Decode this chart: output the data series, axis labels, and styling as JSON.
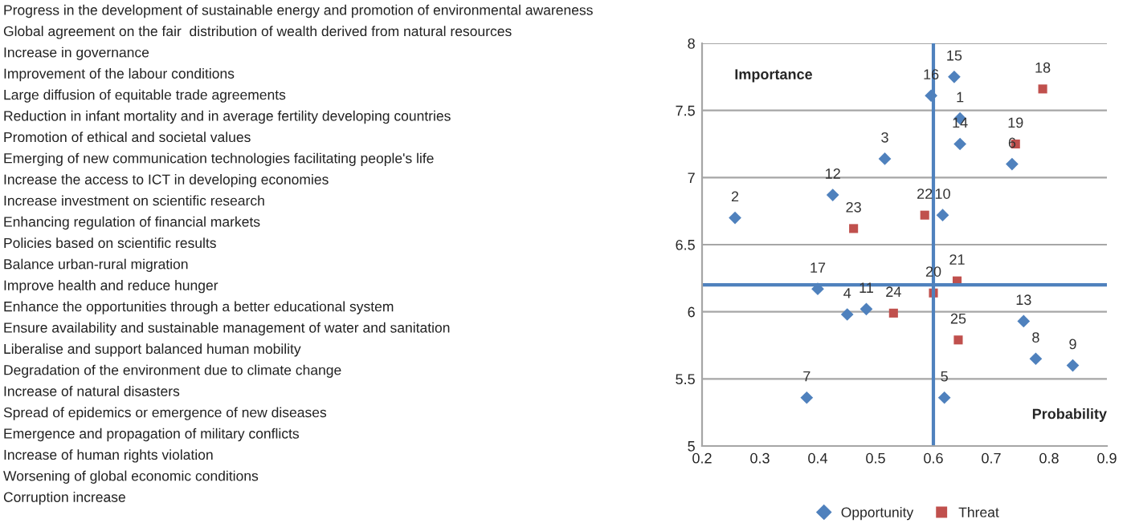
{
  "chart_data": {
    "type": "scatter",
    "xlabel": "Probability",
    "ylabel": "Importance",
    "xlim": [
      0.2,
      0.9
    ],
    "xticks": [
      0.2,
      0.3,
      0.4,
      0.5,
      0.6,
      0.7,
      0.8,
      0.9
    ],
    "ylim": [
      5,
      8
    ],
    "yticks": [
      5,
      5.5,
      6,
      6.5,
      7,
      7.5,
      8
    ],
    "grid": "y",
    "legend": "bottom",
    "series": [
      {
        "name": "Opportunity",
        "color": "#4f81bd",
        "marker": "diamond",
        "x": [
          0.646,
          0.257,
          0.516,
          0.451,
          0.619,
          0.736,
          0.381,
          0.777,
          0.841,
          0.616,
          0.484,
          0.426,
          0.756,
          0.646,
          0.636,
          0.596,
          0.4
        ],
        "values": [
          7.44,
          6.7,
          7.14,
          5.98,
          5.36,
          7.1,
          5.36,
          5.65,
          5.6,
          6.72,
          6.02,
          6.87,
          5.93,
          7.25,
          7.75,
          7.61,
          6.17
        ]
      },
      {
        "name": "Threat",
        "color": "#c0504d",
        "marker": "square",
        "x": [
          0.789,
          0.742,
          0.6,
          0.641,
          0.585,
          0.462,
          0.531,
          0.643
        ],
        "values": [
          7.66,
          7.25,
          6.14,
          6.23,
          6.72,
          6.62,
          5.99,
          5.79
        ]
      }
    ],
    "ref_lines": [
      {
        "axis": "x",
        "value": 0.6,
        "color": "#4f81bd"
      },
      {
        "axis": "y",
        "value": 6.2,
        "color": "#4f81bd"
      }
    ],
    "annotations": [
      {
        "text": "1",
        "x": 0.646,
        "y": 7.44
      },
      {
        "text": "2",
        "x": 0.257,
        "y": 6.7
      },
      {
        "text": "3",
        "x": 0.516,
        "y": 7.14
      },
      {
        "text": "4",
        "x": 0.451,
        "y": 5.98
      },
      {
        "text": "5",
        "x": 0.619,
        "y": 5.36
      },
      {
        "text": "6",
        "x": 0.736,
        "y": 7.1
      },
      {
        "text": "7",
        "x": 0.381,
        "y": 5.36
      },
      {
        "text": "8",
        "x": 0.777,
        "y": 5.65
      },
      {
        "text": "9",
        "x": 0.841,
        "y": 5.6
      },
      {
        "text": "10",
        "x": 0.616,
        "y": 6.72
      },
      {
        "text": "11",
        "x": 0.484,
        "y": 6.02
      },
      {
        "text": "12",
        "x": 0.426,
        "y": 6.87
      },
      {
        "text": "13",
        "x": 0.756,
        "y": 5.93
      },
      {
        "text": "14",
        "x": 0.646,
        "y": 7.25
      },
      {
        "text": "15",
        "x": 0.636,
        "y": 7.75
      },
      {
        "text": "16",
        "x": 0.596,
        "y": 7.61
      },
      {
        "text": "17",
        "x": 0.4,
        "y": 6.17
      },
      {
        "text": "18",
        "x": 0.789,
        "y": 7.66
      },
      {
        "text": "19",
        "x": 0.742,
        "y": 7.25
      },
      {
        "text": "20",
        "x": 0.6,
        "y": 6.14
      },
      {
        "text": "21",
        "x": 0.641,
        "y": 6.23
      },
      {
        "text": "22",
        "x": 0.585,
        "y": 6.72
      },
      {
        "text": "23",
        "x": 0.462,
        "y": 6.62
      },
      {
        "text": "24",
        "x": 0.531,
        "y": 5.99
      },
      {
        "text": "25",
        "x": 0.643,
        "y": 5.79
      },
      "Progress in the development of sustainable energy and promotion of environmental awareness",
      "Global agreement on the fair  distribution of wealth derived from natural resources",
      "Increase in governance",
      "Improvement of the labour conditions",
      "Large diffusion of equitable trade agreements",
      "Reduction in infant mortality and in average fertility developing countries",
      "Promotion of ethical and societal values",
      "Emerging of new communication technologies facilitating people's life",
      "Increase the access to ICT in developing economies",
      "Increase investment on scientific research",
      "Enhancing regulation of financial markets",
      "Policies based on scientific results",
      "Balance urban-rural migration",
      "Improve health and reduce hunger",
      "Enhance the opportunities through a better educational system",
      "Ensure availability and sustainable management of water and sanitation",
      "Liberalise and support balanced human mobility",
      "Degradation of the environment due to climate change",
      "Increase of natural disasters",
      "Spread of epidemics or emergence of new diseases",
      "Emergence and propagation of military conflicts",
      "Increase of human rights violation",
      "Worsening of global economic conditions",
      "Corruption increase"
    ]
  }
}
